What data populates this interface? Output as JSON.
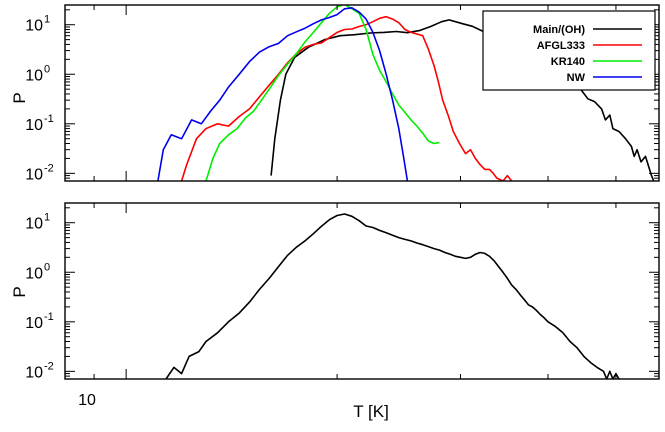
{
  "chart_data": [
    {
      "type": "line",
      "xscale": "log",
      "yscale": "log",
      "xlim": [
        8.18,
        57.6
      ],
      "ylim": [
        0.007,
        25
      ],
      "ylabel": "P",
      "legend_placement": "top-right",
      "ytick_labels": [
        {
          "value": 10,
          "base": "10",
          "exp": "1"
        },
        {
          "value": 1,
          "base": "10",
          "exp": "0"
        },
        {
          "value": 0.1,
          "base": "10",
          "exp": "-1"
        },
        {
          "value": 0.01,
          "base": "10",
          "exp": "-2"
        }
      ],
      "series": [
        {
          "name": "Main/(OH)",
          "color": "#000000",
          "points": [
            [
              16.1,
              0.009
            ],
            [
              16.3,
              0.05
            ],
            [
              16.6,
              0.3
            ],
            [
              16.9,
              1.0
            ],
            [
              17.4,
              2.2
            ],
            [
              18.2,
              3.5
            ],
            [
              19.2,
              5.0
            ],
            [
              20.2,
              6.0
            ],
            [
              21.2,
              6.3
            ],
            [
              22.3,
              6.8
            ],
            [
              23.3,
              7.0
            ],
            [
              24.3,
              7.3
            ],
            [
              25.2,
              6.9
            ],
            [
              26.2,
              7.6
            ],
            [
              27.2,
              9.2
            ],
            [
              28.2,
              11.5
            ],
            [
              28.9,
              12.5
            ],
            [
              30.2,
              10.5
            ],
            [
              31.2,
              9.3
            ],
            [
              32.2,
              7.5
            ],
            [
              33.2,
              6.8
            ],
            [
              34.2,
              5.5
            ],
            [
              35.3,
              4.9
            ],
            [
              36.2,
              4.0
            ],
            [
              37.1,
              3.0
            ],
            [
              38.0,
              2.0
            ],
            [
              39.0,
              1.7
            ],
            [
              40.2,
              1.4
            ],
            [
              41.2,
              1.4
            ],
            [
              42.3,
              1.0
            ],
            [
              43.4,
              0.7
            ],
            [
              44.6,
              0.48
            ],
            [
              45.6,
              0.32
            ],
            [
              46.6,
              0.28
            ],
            [
              47.7,
              0.2
            ],
            [
              48.3,
              0.12
            ],
            [
              49.0,
              0.15
            ],
            [
              49.5,
              0.08
            ],
            [
              50.5,
              0.07
            ],
            [
              51.6,
              0.05
            ],
            [
              52.6,
              0.035
            ],
            [
              53.1,
              0.022
            ],
            [
              53.6,
              0.03
            ],
            [
              54.3,
              0.017
            ],
            [
              55.1,
              0.022
            ],
            [
              56.2,
              0.009
            ],
            [
              56.6,
              0.007
            ]
          ]
        },
        {
          "name": "AFGL333",
          "color": "#ff0000",
          "points": [
            [
              12.0,
              0.007
            ],
            [
              12.2,
              0.015
            ],
            [
              12.6,
              0.05
            ],
            [
              13.0,
              0.08
            ],
            [
              13.5,
              0.1
            ],
            [
              14.0,
              0.09
            ],
            [
              14.5,
              0.14
            ],
            [
              15.0,
              0.2
            ],
            [
              15.5,
              0.35
            ],
            [
              16.0,
              0.6
            ],
            [
              16.5,
              1.0
            ],
            [
              17.0,
              1.7
            ],
            [
              17.5,
              2.6
            ],
            [
              18.0,
              3.5
            ],
            [
              18.5,
              4.0
            ],
            [
              19.0,
              4.3
            ],
            [
              19.5,
              5.5
            ],
            [
              20.0,
              7.0
            ],
            [
              20.5,
              8.0
            ],
            [
              21.0,
              8.2
            ],
            [
              21.5,
              9.2
            ],
            [
              22.0,
              10.0
            ],
            [
              22.5,
              11.5
            ],
            [
              23.0,
              13.5
            ],
            [
              23.5,
              14.5
            ],
            [
              24.0,
              13.0
            ],
            [
              24.5,
              11.0
            ],
            [
              25.0,
              8.0
            ],
            [
              25.5,
              7.0
            ],
            [
              26.0,
              6.5
            ],
            [
              26.5,
              6.0
            ],
            [
              27.0,
              3.2
            ],
            [
              27.5,
              1.5
            ],
            [
              27.9,
              0.7
            ],
            [
              28.3,
              0.3
            ],
            [
              28.8,
              0.15
            ],
            [
              29.3,
              0.07
            ],
            [
              29.9,
              0.04
            ],
            [
              30.5,
              0.025
            ],
            [
              31.0,
              0.03
            ],
            [
              31.5,
              0.02
            ],
            [
              32.0,
              0.015
            ],
            [
              32.5,
              0.012
            ],
            [
              33.0,
              0.012
            ],
            [
              33.4,
              0.01
            ],
            [
              33.8,
              0.008
            ],
            [
              34.5,
              0.007
            ],
            [
              35.0,
              0.009
            ],
            [
              35.5,
              0.007
            ]
          ]
        },
        {
          "name": "KR140",
          "color": "#00ee00",
          "points": [
            [
              13.0,
              0.007
            ],
            [
              13.3,
              0.02
            ],
            [
              13.6,
              0.04
            ],
            [
              14.0,
              0.06
            ],
            [
              14.4,
              0.08
            ],
            [
              14.8,
              0.13
            ],
            [
              15.2,
              0.18
            ],
            [
              15.6,
              0.3
            ],
            [
              16.0,
              0.5
            ],
            [
              16.5,
              0.95
            ],
            [
              17.0,
              1.6
            ],
            [
              17.5,
              2.6
            ],
            [
              18.0,
              4.5
            ],
            [
              18.5,
              7.0
            ],
            [
              19.0,
              11.0
            ],
            [
              19.5,
              17.0
            ],
            [
              20.0,
              23.0
            ],
            [
              20.5,
              26.0
            ],
            [
              21.0,
              21.0
            ],
            [
              21.5,
              17.0
            ],
            [
              22.0,
              8.0
            ],
            [
              22.5,
              2.5
            ],
            [
              23.0,
              1.2
            ],
            [
              23.5,
              0.7
            ],
            [
              24.0,
              0.4
            ],
            [
              24.5,
              0.24
            ],
            [
              25.0,
              0.17
            ],
            [
              25.5,
              0.12
            ],
            [
              26.0,
              0.09
            ],
            [
              26.5,
              0.065
            ],
            [
              27.0,
              0.045
            ],
            [
              27.5,
              0.04
            ],
            [
              28.0,
              0.042
            ]
          ]
        },
        {
          "name": "NW",
          "color": "#0000ee",
          "points": [
            [
              11.1,
              0.007
            ],
            [
              11.3,
              0.03
            ],
            [
              11.6,
              0.06
            ],
            [
              12.0,
              0.05
            ],
            [
              12.4,
              0.12
            ],
            [
              12.8,
              0.1
            ],
            [
              13.2,
              0.18
            ],
            [
              13.6,
              0.3
            ],
            [
              14.0,
              0.55
            ],
            [
              14.5,
              1.0
            ],
            [
              15.0,
              1.8
            ],
            [
              15.5,
              2.8
            ],
            [
              16.0,
              3.6
            ],
            [
              16.5,
              4.2
            ],
            [
              17.0,
              6.0
            ],
            [
              17.5,
              7.2
            ],
            [
              18.0,
              8.5
            ],
            [
              18.5,
              10.5
            ],
            [
              19.0,
              12.5
            ],
            [
              19.5,
              14.0
            ],
            [
              20.0,
              16.0
            ],
            [
              20.5,
              21.0
            ],
            [
              21.0,
              22.0
            ],
            [
              21.5,
              18.0
            ],
            [
              22.0,
              13.0
            ],
            [
              22.5,
              7.0
            ],
            [
              23.0,
              3.0
            ],
            [
              23.5,
              1.0
            ],
            [
              24.0,
              0.3
            ],
            [
              24.5,
              0.08
            ],
            [
              24.9,
              0.02
            ],
            [
              25.2,
              0.007
            ]
          ]
        }
      ]
    },
    {
      "type": "line",
      "xscale": "log",
      "yscale": "log",
      "xlim": [
        8.18,
        57.6
      ],
      "ylim": [
        0.007,
        25
      ],
      "xlabel": "T [K]",
      "ylabel": "P",
      "xtick_labels": [
        {
          "value": 10,
          "label": "10"
        }
      ],
      "ytick_labels": [
        {
          "value": 10,
          "base": "10",
          "exp": "1"
        },
        {
          "value": 1,
          "base": "10",
          "exp": "0"
        },
        {
          "value": 0.1,
          "base": "10",
          "exp": "-1"
        },
        {
          "value": 0.01,
          "base": "10",
          "exp": "-2"
        }
      ],
      "series": [
        {
          "color": "#000000",
          "points": [
            [
              11.4,
              0.007
            ],
            [
              11.7,
              0.012
            ],
            [
              12.0,
              0.009
            ],
            [
              12.3,
              0.02
            ],
            [
              12.7,
              0.025
            ],
            [
              13.0,
              0.04
            ],
            [
              13.5,
              0.06
            ],
            [
              14.0,
              0.1
            ],
            [
              14.5,
              0.15
            ],
            [
              15.0,
              0.25
            ],
            [
              15.5,
              0.45
            ],
            [
              16.0,
              0.75
            ],
            [
              16.5,
              1.3
            ],
            [
              17.0,
              2.2
            ],
            [
              17.5,
              3.2
            ],
            [
              18.0,
              4.3
            ],
            [
              18.5,
              6.0
            ],
            [
              19.0,
              8.5
            ],
            [
              19.5,
              11.5
            ],
            [
              20.0,
              14.0
            ],
            [
              20.5,
              15.0
            ],
            [
              21.0,
              13.5
            ],
            [
              21.5,
              11.0
            ],
            [
              22.0,
              8.6
            ],
            [
              22.5,
              8.0
            ],
            [
              23.0,
              7.0
            ],
            [
              23.5,
              6.3
            ],
            [
              24.0,
              5.6
            ],
            [
              24.5,
              5.0
            ],
            [
              25.0,
              4.6
            ],
            [
              25.5,
              4.3
            ],
            [
              26.0,
              3.9
            ],
            [
              26.5,
              3.6
            ],
            [
              27.0,
              3.3
            ],
            [
              27.5,
              3.0
            ],
            [
              28.0,
              2.8
            ],
            [
              28.5,
              2.5
            ],
            [
              29.0,
              2.3
            ],
            [
              29.5,
              2.1
            ],
            [
              30.0,
              2.0
            ],
            [
              30.5,
              1.9
            ],
            [
              31.0,
              2.0
            ],
            [
              31.5,
              2.3
            ],
            [
              32.0,
              2.5
            ],
            [
              32.5,
              2.4
            ],
            [
              33.0,
              2.1
            ],
            [
              33.5,
              1.7
            ],
            [
              34.0,
              1.3
            ],
            [
              34.5,
              1.0
            ],
            [
              35.0,
              0.75
            ],
            [
              35.5,
              0.55
            ],
            [
              36.0,
              0.45
            ],
            [
              36.5,
              0.35
            ],
            [
              37.0,
              0.28
            ],
            [
              37.5,
              0.22
            ],
            [
              38.0,
              0.2
            ],
            [
              38.5,
              0.17
            ],
            [
              39.0,
              0.14
            ],
            [
              39.5,
              0.12
            ],
            [
              40.0,
              0.1
            ],
            [
              41.0,
              0.08
            ],
            [
              42.0,
              0.06
            ],
            [
              43.0,
              0.04
            ],
            [
              44.0,
              0.03
            ],
            [
              45.0,
              0.02
            ],
            [
              46.0,
              0.015
            ],
            [
              47.0,
              0.012
            ],
            [
              48.0,
              0.01
            ],
            [
              48.5,
              0.007
            ],
            [
              49.0,
              0.01
            ],
            [
              49.5,
              0.007
            ],
            [
              50.0,
              0.009
            ],
            [
              50.5,
              0.007
            ]
          ]
        }
      ]
    }
  ]
}
